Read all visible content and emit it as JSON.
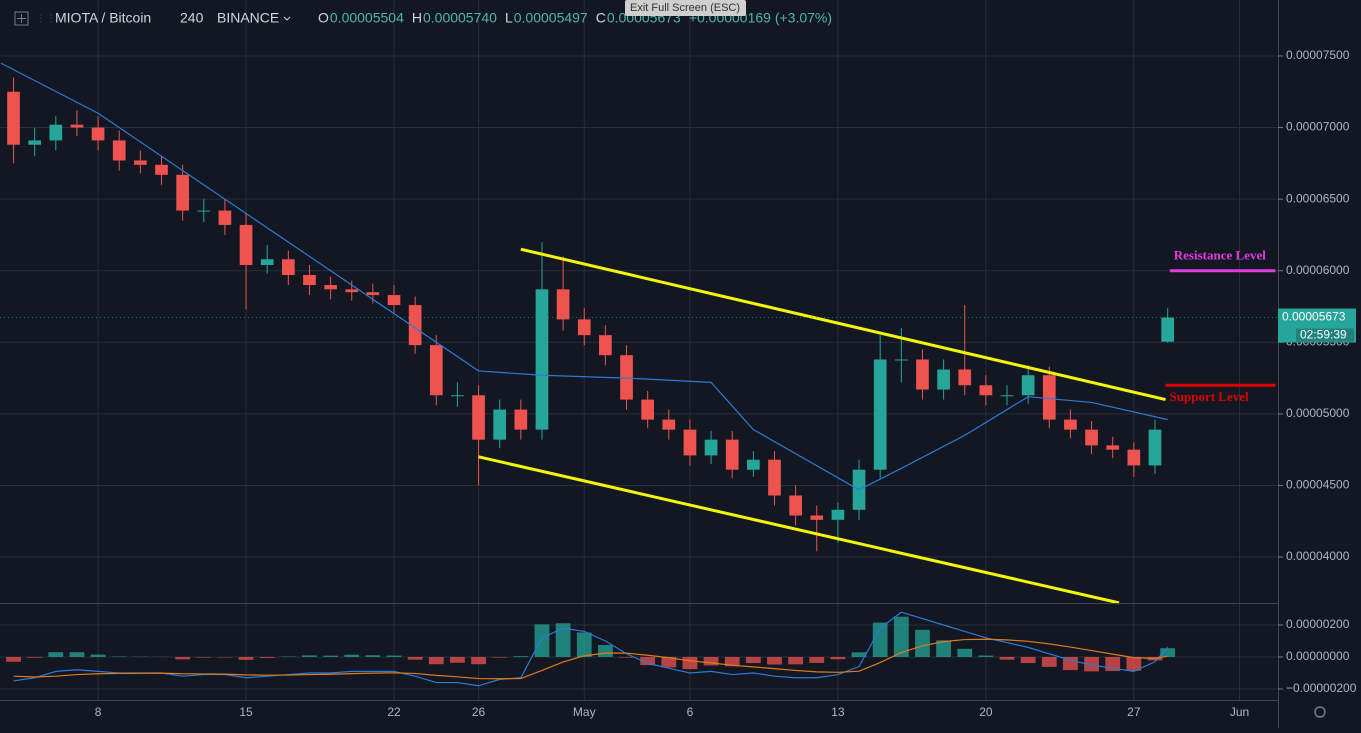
{
  "header": {
    "symbol": "MIOTA / Bitcoin",
    "interval": "240",
    "exchange": "BINANCE",
    "ohlc": [
      {
        "k": "O",
        "v": "0.00005504"
      },
      {
        "k": "H",
        "v": "0.00005740"
      },
      {
        "k": "L",
        "v": "0.00005497"
      },
      {
        "k": "C",
        "v": "0.00005673"
      }
    ],
    "change": "+0.00000169 (+3.07%)",
    "tooltip": "Exit Full Screen (ESC)"
  },
  "chart_data": [
    {
      "type": "candlestick",
      "up_color": "#26a69a",
      "down_color": "#ef5350",
      "xlim": [
        3.36,
        63.82
      ],
      "ylim": [
        3.679e-05,
        7.891e-05
      ],
      "xticks": [
        8,
        15,
        22,
        26,
        {
          "value": 31,
          "label": "May"
        },
        {
          "value": 36,
          "label": "6"
        },
        {
          "value": 43,
          "label": "13"
        },
        {
          "value": 50,
          "label": "20"
        },
        {
          "value": 57,
          "label": "27"
        },
        {
          "value": 62,
          "label": "Jun"
        }
      ],
      "yticks": [
        {
          "value": 4e-05,
          "label": "0.00004000"
        },
        {
          "value": 4.5e-05,
          "label": "0.00004500"
        },
        {
          "value": 5e-05,
          "label": "0.00005000"
        },
        {
          "value": 5.5e-05,
          "label": "0.00005500"
        },
        {
          "value": 6e-05,
          "label": "0.00006000"
        },
        {
          "value": 6.5e-05,
          "label": "0.00006500"
        },
        {
          "value": 7e-05,
          "label": "0.00007000"
        },
        {
          "value": 7.5e-05,
          "label": "0.00007500"
        }
      ],
      "grid": true,
      "x": [
        4,
        5,
        6,
        7,
        8,
        9,
        10,
        11,
        12,
        13,
        14,
        15,
        16,
        17,
        18,
        19,
        20,
        21,
        22,
        23,
        24,
        25,
        26,
        27,
        28,
        29,
        30,
        31,
        32,
        33,
        34,
        35,
        36,
        37,
        38,
        39,
        40,
        41,
        42,
        43,
        44,
        45,
        46,
        47,
        48,
        49,
        50,
        51,
        52,
        53,
        54,
        55,
        56,
        57,
        58,
        58.6
      ],
      "open": [
        7.25e-05,
        6.88e-05,
        6.91e-05,
        7.02e-05,
        7e-05,
        6.91e-05,
        6.77e-05,
        6.74e-05,
        6.67e-05,
        6.42e-05,
        6.42e-05,
        6.32e-05,
        6.04e-05,
        6.08e-05,
        5.97e-05,
        5.9e-05,
        5.87e-05,
        5.85e-05,
        5.83e-05,
        5.76e-05,
        5.48e-05,
        5.13e-05,
        5.13e-05,
        4.82e-05,
        5.03e-05,
        4.89e-05,
        5.87e-05,
        5.66e-05,
        5.55e-05,
        5.41e-05,
        5.1e-05,
        4.96e-05,
        4.89e-05,
        4.71e-05,
        4.82e-05,
        4.61e-05,
        4.68e-05,
        4.43e-05,
        4.29e-05,
        4.26e-05,
        4.33e-05,
        4.61e-05,
        5.38e-05,
        5.38e-05,
        5.17e-05,
        5.31e-05,
        5.2e-05,
        5.13e-05,
        5.13e-05,
        5.27e-05,
        4.96e-05,
        4.89e-05,
        4.78e-05,
        4.75e-05,
        4.64e-05,
        5.504e-05
      ],
      "high": [
        7.35e-05,
        7e-05,
        7.08e-05,
        7.12e-05,
        7.08e-05,
        6.98e-05,
        6.84e-05,
        6.8e-05,
        6.74e-05,
        6.5e-05,
        6.5e-05,
        6.4e-05,
        6.18e-05,
        6.14e-05,
        6.04e-05,
        5.96e-05,
        5.93e-05,
        5.91e-05,
        5.9e-05,
        5.82e-05,
        5.55e-05,
        5.22e-05,
        5.2e-05,
        5.1e-05,
        5.1e-05,
        6.2e-05,
        6.1e-05,
        5.74e-05,
        5.62e-05,
        5.48e-05,
        5.16e-05,
        5.03e-05,
        4.96e-05,
        4.88e-05,
        4.88e-05,
        4.74e-05,
        4.74e-05,
        4.5e-05,
        4.36e-05,
        4.38e-05,
        4.68e-05,
        5.55e-05,
        5.6e-05,
        5.45e-05,
        5.38e-05,
        5.76e-05,
        5.27e-05,
        5.2e-05,
        5.34e-05,
        5.33e-05,
        5.03e-05,
        4.95e-05,
        4.84e-05,
        4.8e-05,
        4.96e-05,
        5.74e-05
      ],
      "low": [
        6.75e-05,
        6.8e-05,
        6.84e-05,
        6.94e-05,
        6.84e-05,
        6.7e-05,
        6.68e-05,
        6.6e-05,
        6.35e-05,
        6.34e-05,
        6.25e-05,
        5.73e-05,
        5.98e-05,
        5.9e-05,
        5.83e-05,
        5.8e-05,
        5.79e-05,
        5.77e-05,
        5.7e-05,
        5.42e-05,
        5.06e-05,
        5.05e-05,
        4.5e-05,
        4.76e-05,
        4.82e-05,
        4.82e-05,
        5.58e-05,
        5.48e-05,
        5.34e-05,
        5.03e-05,
        4.9e-05,
        4.82e-05,
        4.64e-05,
        4.65e-05,
        4.55e-05,
        4.56e-05,
        4.36e-05,
        4.22e-05,
        4.04e-05,
        4.1e-05,
        4.26e-05,
        4.55e-05,
        5.22e-05,
        5.1e-05,
        5.1e-05,
        5.13e-05,
        5.06e-05,
        5.06e-05,
        5.07e-05,
        4.9e-05,
        4.83e-05,
        4.72e-05,
        4.69e-05,
        4.56e-05,
        4.58e-05,
        5.497e-05
      ],
      "close": [
        6.88e-05,
        6.91e-05,
        7.02e-05,
        7e-05,
        6.91e-05,
        6.77e-05,
        6.74e-05,
        6.67e-05,
        6.42e-05,
        6.42e-05,
        6.32e-05,
        6.04e-05,
        6.08e-05,
        5.97e-05,
        5.9e-05,
        5.87e-05,
        5.85e-05,
        5.83e-05,
        5.76e-05,
        5.48e-05,
        5.13e-05,
        5.13e-05,
        4.82e-05,
        5.03e-05,
        4.89e-05,
        5.87e-05,
        5.66e-05,
        5.55e-05,
        5.41e-05,
        5.1e-05,
        4.96e-05,
        4.89e-05,
        4.71e-05,
        4.82e-05,
        4.61e-05,
        4.68e-05,
        4.43e-05,
        4.29e-05,
        4.26e-05,
        4.33e-05,
        4.61e-05,
        5.38e-05,
        5.38e-05,
        5.17e-05,
        5.31e-05,
        5.2e-05,
        5.13e-05,
        5.13e-05,
        5.27e-05,
        4.96e-05,
        4.89e-05,
        4.78e-05,
        4.75e-05,
        4.64e-05,
        4.89e-05,
        5.673e-05
      ],
      "ma": {
        "color": "#2a7bd6",
        "x": [
          3.4,
          8,
          13,
          18,
          22,
          26,
          29,
          33,
          37,
          39,
          44,
          46,
          49,
          52,
          55,
          58.6
        ],
        "values": [
          7.45e-05,
          7.1e-05,
          6.6e-05,
          6.1e-05,
          5.7e-05,
          5.3e-05,
          5.27e-05,
          5.25e-05,
          5.22e-05,
          4.89e-05,
          4.47e-05,
          4.62e-05,
          4.85e-05,
          5.12e-05,
          5.08e-05,
          4.96e-05
        ]
      },
      "trendlines": [
        {
          "color": "#f4f40a",
          "x": [
            28,
            58.5
          ],
          "y": [
            6.15e-05,
            5.1e-05
          ]
        },
        {
          "color": "#f4f40a",
          "x": [
            26,
            56.3
          ],
          "y": [
            4.7e-05,
            3.68e-05
          ]
        }
      ],
      "levels": [
        {
          "label": "Resistance Level",
          "value": 6e-05,
          "color": "#e03ce0",
          "x": [
            58.7,
            63.7
          ]
        },
        {
          "label": "Support Level",
          "value": 5.2e-05,
          "color": "#e00000",
          "x": [
            58.5,
            63.7
          ]
        }
      ],
      "last_price": {
        "value": 5.673e-05,
        "label": "0.00005673"
      },
      "countdown": "02:59:39"
    },
    {
      "type": "macd",
      "xlim": [
        3.36,
        63.82
      ],
      "ylim": [
        -2.69e-06,
        3.25e-06
      ],
      "yticks": [
        {
          "value": -2e-06,
          "label": "−0.00000200"
        },
        {
          "value": 0,
          "label": "0.00000000"
        },
        {
          "value": 2e-06,
          "label": "0.00000200"
        }
      ],
      "x": [
        4,
        5,
        6,
        7,
        8,
        9,
        10,
        11,
        12,
        13,
        14,
        15,
        16,
        17,
        18,
        19,
        20,
        21,
        22,
        23,
        24,
        25,
        26,
        27,
        28,
        29,
        30,
        31,
        32,
        33,
        34,
        35,
        36,
        37,
        38,
        39,
        40,
        41,
        42,
        43,
        44,
        45,
        46,
        47,
        48,
        49,
        50,
        51,
        52,
        53,
        54,
        55,
        56,
        57,
        58,
        58.6
      ],
      "pos_color": "#26a69a",
      "neg_color": "#ef5350",
      "macd_color": "#2a7bd6",
      "signal_color": "#e07a1f",
      "histogram": [
        -3e-07,
        -5e-08,
        3e-07,
        3e-07,
        1.5e-07,
        3e-08,
        2e-08,
        1e-08,
        -1.5e-07,
        -4e-08,
        -3e-08,
        -1.8e-07,
        -6e-08,
        3e-08,
        1e-07,
        8e-08,
        1.4e-07,
        1.1e-07,
        9e-08,
        -1.7e-07,
        -4.5e-07,
        -3.6e-07,
        -4.5e-07,
        -4e-08,
        5e-08,
        2.04e-06,
        2.11e-06,
        1.53e-06,
        7.5e-07,
        -4e-08,
        -5.1e-07,
        -6.5e-07,
        -7.6e-07,
        -5.3e-07,
        -5.8e-07,
        -3.8e-07,
        -4.7e-07,
        -4.6e-07,
        -3.7e-07,
        -1.4e-07,
        2.9e-07,
        2.15e-06,
        2.52e-06,
        1.7e-06,
        1.04e-06,
        5.1e-07,
        9e-08,
        -1.7e-07,
        -3.8e-07,
        -6.2e-07,
        -8.2e-07,
        -9e-07,
        -8.8e-07,
        -8.6e-07,
        -2.1e-07,
        5.5e-07
      ],
      "macd": [
        -1.5e-06,
        -1.3e-06,
        -9e-07,
        -8e-07,
        -9e-07,
        -1e-06,
        -1e-06,
        -1e-06,
        -1.2e-06,
        -1.1e-06,
        -1.1e-06,
        -1.3e-06,
        -1.2e-06,
        -1.1e-06,
        -1e-06,
        -1e-06,
        -9e-07,
        -9e-07,
        -9e-07,
        -1.2e-06,
        -1.6e-06,
        -1.6e-06,
        -1.8e-06,
        -1.4e-06,
        -1.3e-06,
        1.2e-06,
        1.8e-06,
        1.6e-06,
        1e-06,
        2e-07,
        -4e-07,
        -7e-07,
        -1e-06,
        -9e-07,
        -1.1e-06,
        -1e-06,
        -1.2e-06,
        -1.3e-06,
        -1.3e-06,
        -1.1e-06,
        -6e-07,
        1.8e-06,
        2.8e-06,
        2.4e-06,
        2e-06,
        1.6e-06,
        1.2e-06,
        9e-07,
        6e-07,
        2e-07,
        -2e-07,
        -5e-07,
        -7e-07,
        -9e-07,
        -3e-07,
        6e-07
      ],
      "signal": [
        -1.2e-06,
        -1.25e-06,
        -1.2e-06,
        -1.1e-06,
        -1.05e-06,
        -1.03e-06,
        -1.02e-06,
        -1.01e-06,
        -1.05e-06,
        -1.06e-06,
        -1.07e-06,
        -1.12e-06,
        -1.14e-06,
        -1.13e-06,
        -1.1e-06,
        -1.08e-06,
        -1.04e-06,
        -1.01e-06,
        -9.9e-07,
        -1.03e-06,
        -1.15e-06,
        -1.24e-06,
        -1.35e-06,
        -1.36e-06,
        -1.35e-06,
        -8.4e-07,
        -3.1e-07,
        7e-08,
        2.5e-07,
        2.4e-07,
        1.1e-07,
        -5e-08,
        -2.4e-07,
        -3.7e-07,
        -5.2e-07,
        -6.2e-07,
        -7.3e-07,
        -8.4e-07,
        -9.3e-07,
        -9.6e-07,
        -8.9e-07,
        -3.5e-07,
        2.8e-07,
        7e-07,
        9.6e-07,
        1.09e-06,
        1.11e-06,
        1.07e-06,
        9.8e-07,
        8.2e-07,
        6.2e-07,
        4e-07,
        1.8e-07,
        -4e-08,
        -9e-08,
        5e-08
      ]
    }
  ]
}
